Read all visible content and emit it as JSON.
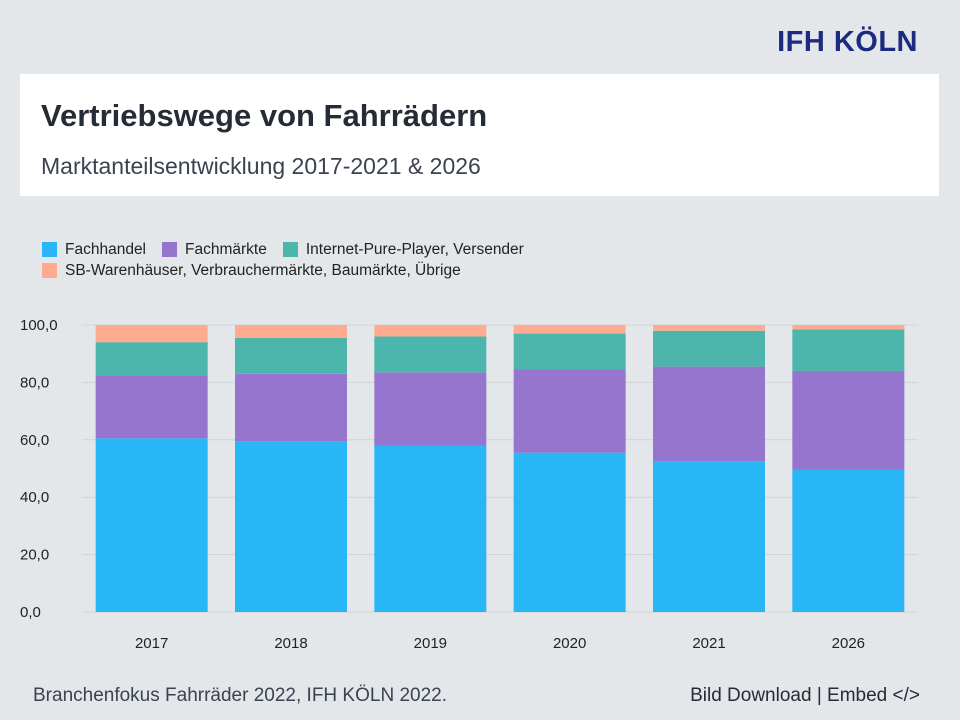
{
  "brand": "IFH KÖLN",
  "header": {
    "title": "Vertriebswege von Fahrrädern",
    "subtitle": "Marktanteilsentwicklung 2017-2021 & 2026"
  },
  "footer": {
    "source": "Branchenfokus Fahrräder 2022, IFH KÖLN 2022.",
    "download": "Bild Download",
    "separator": "|",
    "embed": "Embed </>"
  },
  "colors": {
    "fachhandel": "#29b6f6",
    "fachmaerkte": "#9575cd",
    "internet": "#4db6ac",
    "sb": "#ffab91"
  },
  "chart_data": {
    "type": "bar",
    "stacked": true,
    "title": "Vertriebswege von Fahrrädern",
    "subtitle": "Marktanteilsentwicklung 2017-2021 & 2026",
    "xlabel": "",
    "ylabel": "",
    "ylim": [
      0,
      100
    ],
    "yticks": [
      "0,0",
      "20,0",
      "40,0",
      "60,0",
      "80,0",
      "100,0"
    ],
    "ytick_values": [
      0,
      20,
      40,
      60,
      80,
      100
    ],
    "grid": true,
    "legend_position": "top-left",
    "categories": [
      "2017",
      "2018",
      "2019",
      "2020",
      "2021",
      "2026"
    ],
    "series": [
      {
        "name": "Fachhandel",
        "color": "#29b6f6",
        "values": [
          60.5,
          59.5,
          58.0,
          55.5,
          52.5,
          49.5
        ]
      },
      {
        "name": "Fachmärkte",
        "color": "#9575cd",
        "values": [
          22.0,
          23.5,
          25.5,
          29.0,
          33.0,
          34.5
        ]
      },
      {
        "name": "Internet-Pure-Player, Versender",
        "color": "#4db6ac",
        "values": [
          11.5,
          12.5,
          12.5,
          12.5,
          12.5,
          14.5
        ]
      },
      {
        "name": "SB-Warenhäuser, Verbrauchermärkte, Baumärkte, Übrige",
        "color": "#ffab91",
        "values": [
          6.0,
          4.5,
          4.0,
          3.0,
          2.0,
          1.5
        ]
      }
    ]
  }
}
